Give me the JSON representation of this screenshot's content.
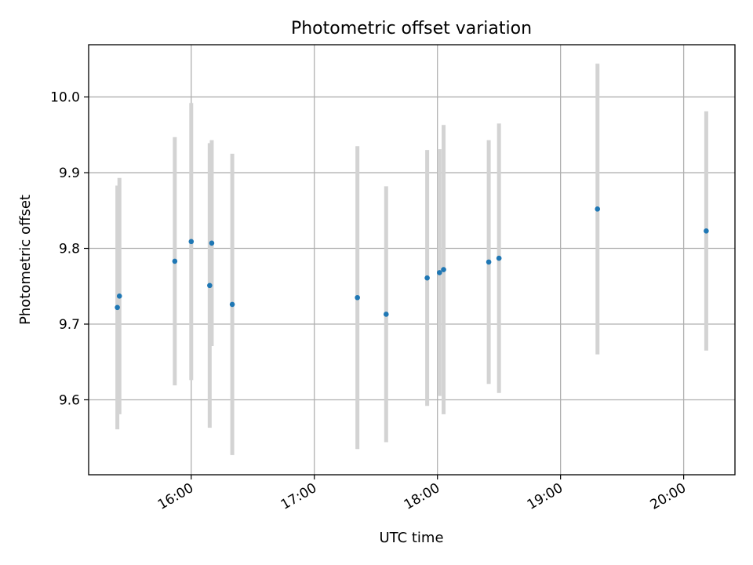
{
  "chart_data": {
    "type": "scatter",
    "title": "Photometric offset variation",
    "xlabel": "UTC time",
    "ylabel": "Photometric offset",
    "grid": true,
    "x_tick_labels": [
      "16:00",
      "17:00",
      "18:00",
      "19:00",
      "20:00"
    ],
    "y_tick_labels": [
      "9.6",
      "9.7",
      "9.8",
      "9.9",
      "10.0"
    ],
    "xlim": [
      "15:10",
      "20:25"
    ],
    "ylim": [
      9.501,
      10.069
    ],
    "error_bar_color": "#d3d3d3",
    "marker_color": "#1f77b4",
    "points": [
      {
        "x": "15:24",
        "y": 9.722,
        "yerr": 0.161
      },
      {
        "x": "15:25",
        "y": 9.737,
        "yerr": 0.156
      },
      {
        "x": "15:52",
        "y": 9.783,
        "yerr": 0.164
      },
      {
        "x": "16:00",
        "y": 9.809,
        "yerr": 0.183
      },
      {
        "x": "16:09",
        "y": 9.751,
        "yerr": 0.188
      },
      {
        "x": "16:10",
        "y": 9.807,
        "yerr": 0.136
      },
      {
        "x": "16:20",
        "y": 9.726,
        "yerr": 0.199
      },
      {
        "x": "17:21",
        "y": 9.735,
        "yerr": 0.2
      },
      {
        "x": "17:35",
        "y": 9.713,
        "yerr": 0.169
      },
      {
        "x": "17:55",
        "y": 9.761,
        "yerr": 0.169
      },
      {
        "x": "18:01",
        "y": 9.768,
        "yerr": 0.163
      },
      {
        "x": "18:03",
        "y": 9.772,
        "yerr": 0.191
      },
      {
        "x": "18:25",
        "y": 9.782,
        "yerr": 0.161
      },
      {
        "x": "18:30",
        "y": 9.787,
        "yerr": 0.178
      },
      {
        "x": "19:18",
        "y": 9.852,
        "yerr": 0.192
      },
      {
        "x": "20:11",
        "y": 9.823,
        "yerr": 0.158
      }
    ]
  }
}
